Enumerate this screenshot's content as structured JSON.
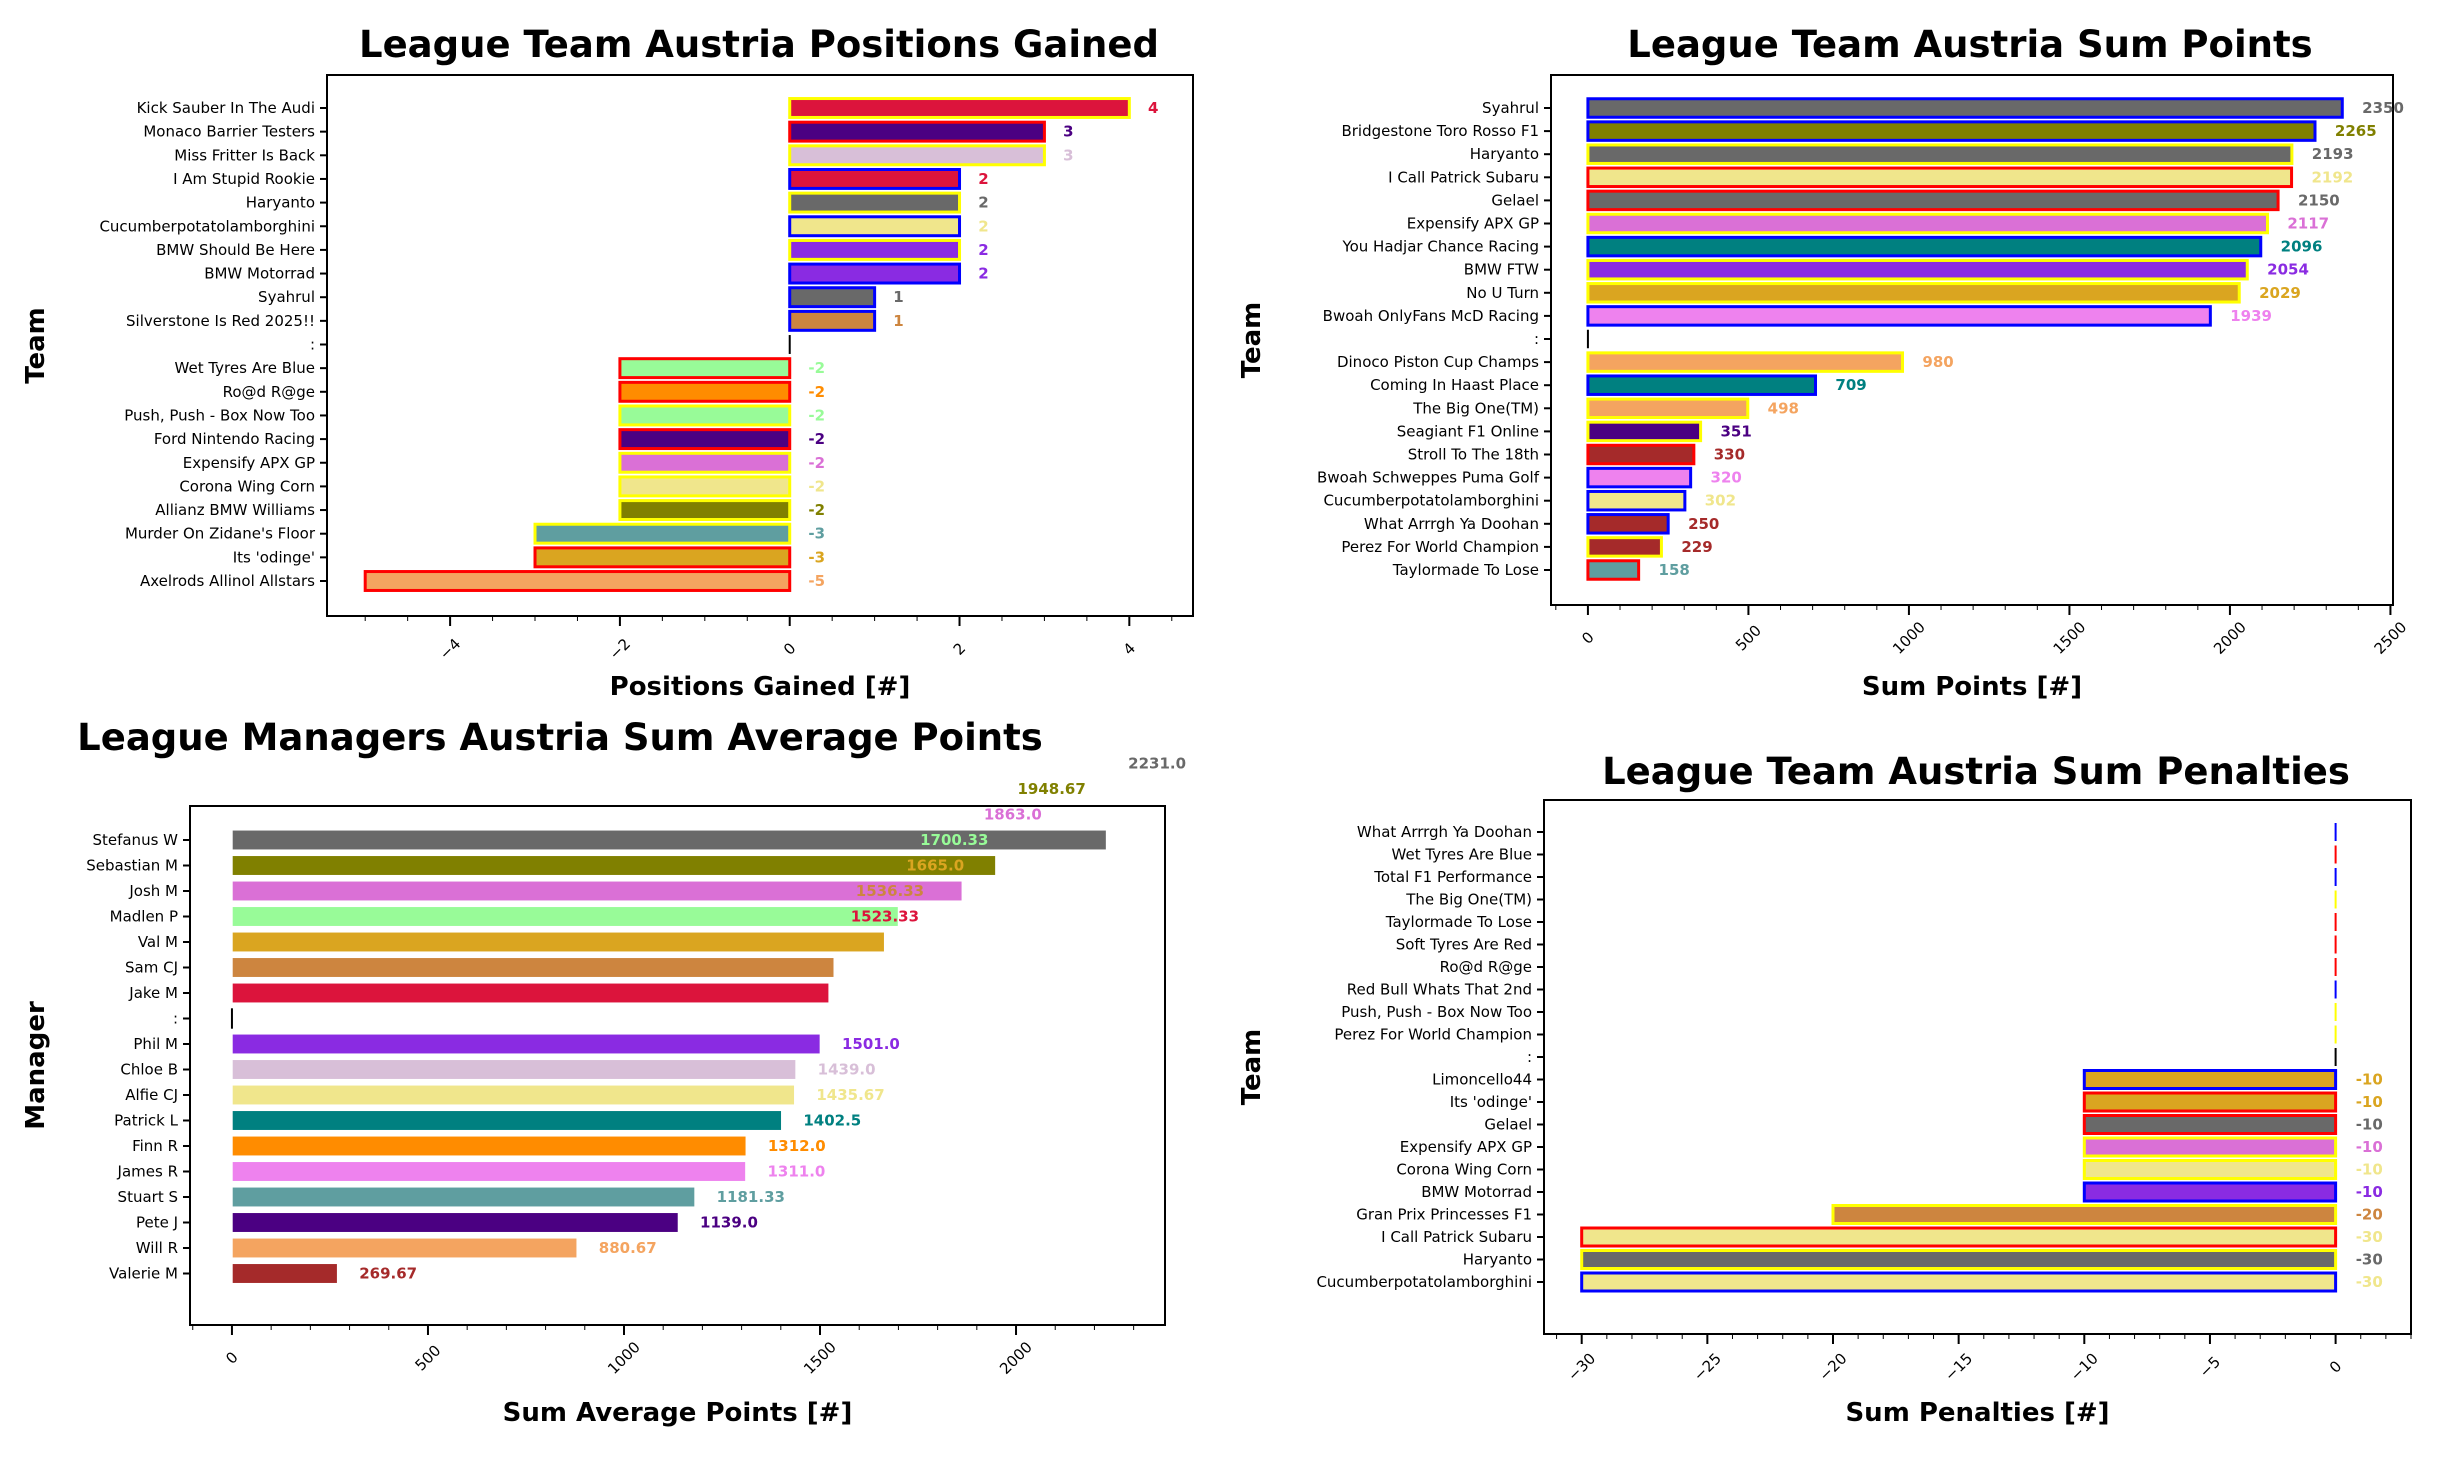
{
  "chart_data": [
    {
      "type": "bar",
      "orientation": "horizontal",
      "title": "League Team Austria Positions Gained",
      "xlabel": "Positions Gained [#]",
      "ylabel": "Team",
      "xlim": [
        -5.45,
        4.75
      ],
      "xticks": [
        -4,
        -2,
        0,
        2,
        4
      ],
      "grid": false,
      "categories": [
        "Kick Sauber In The Audi",
        "Monaco Barrier Testers",
        "Miss Fritter Is Back",
        "I Am Stupid Rookie",
        "Haryanto",
        "Cucumberpotatolamborghini",
        "BMW Should Be Here",
        "BMW Motorrad",
        "Syahrul",
        "Silverstone Is Red 2025!!",
        ":",
        "Wet Tyres Are Blue",
        "Ro@d R@ge",
        "Push, Push - Box Now Too",
        "Ford Nintendo Racing",
        "Expensify APX GP",
        "Corona Wing Corn",
        "Allianz BMW Williams",
        "Murder On Zidane's Floor",
        "Its 'odinge'",
        "Axelrods Allinol Allstars"
      ],
      "values": [
        4,
        3,
        3,
        2,
        2,
        2,
        2,
        2,
        1,
        1,
        0,
        -2,
        -2,
        -2,
        -2,
        -2,
        -2,
        -2,
        -3,
        -3,
        -5
      ],
      "value_labels": [
        "4",
        "3",
        "3",
        "2",
        "2",
        "2",
        "2",
        "2",
        "1",
        "1",
        "",
        "-2",
        "-2",
        "-2",
        "-2",
        "-2",
        "-2",
        "-2",
        "-3",
        "-3",
        "-5"
      ],
      "colors": [
        "#dc143c",
        "#4b0082",
        "#d8bfd8",
        "#dc143c",
        "#696969",
        "#f0e68c",
        "#8a2be2",
        "#8a2be2",
        "#696969",
        "#cd853f",
        "#000000",
        "#98fb98",
        "#ff8c00",
        "#98fb98",
        "#4b0082",
        "#da70d6",
        "#f0e68c",
        "#808000",
        "#5f9ea0",
        "#daa520",
        "#f4a460"
      ],
      "edgecolors": [
        "#ffff00",
        "#ff0000",
        "#ffff00",
        "#0000ff",
        "#ffff00",
        "#0000ff",
        "#ffff00",
        "#0000ff",
        "#0000ff",
        "#0000ff",
        "#000000",
        "#ff0000",
        "#ff0000",
        "#ffff00",
        "#ff0000",
        "#ffff00",
        "#ffff00",
        "#ffff00",
        "#ffff00",
        "#ff0000",
        "#ff0000"
      ]
    },
    {
      "type": "bar",
      "orientation": "horizontal",
      "title": "League Team Austria Sum Points",
      "xlabel": "Sum Points [#]",
      "ylabel": "Team",
      "xlim": [
        -115,
        2508
      ],
      "xticks": [
        0,
        500,
        1000,
        1500,
        2000,
        2500
      ],
      "grid": false,
      "categories": [
        "Syahrul",
        "Bridgestone Toro Rosso F1",
        "Haryanto",
        "I Call Patrick Subaru",
        "Gelael",
        "Expensify APX GP",
        "You Hadjar Chance Racing",
        "BMW FTW",
        "No U Turn",
        "Bwoah OnlyFans McD Racing",
        ":",
        "Dinoco Piston Cup Champs",
        "Coming In Haast Place",
        "The Big One(TM)",
        "Seagiant F1 Online",
        "Stroll To The 18th",
        "Bwoah Schweppes Puma Golf",
        "Cucumberpotatolamborghini",
        "What Arrrgh Ya Doohan",
        "Perez For World Champion",
        "Taylormade To Lose"
      ],
      "values": [
        2350,
        2265,
        2193,
        2192,
        2150,
        2117,
        2096,
        2054,
        2029,
        1939,
        0,
        980,
        709,
        498,
        351,
        330,
        320,
        302,
        250,
        229,
        158
      ],
      "value_labels": [
        "2350",
        "2265",
        "2193",
        "2192",
        "2150",
        "2117",
        "2096",
        "2054",
        "2029",
        "1939",
        "",
        "980",
        "709",
        "498",
        "351",
        "330",
        "320",
        "302",
        "250",
        "229",
        "158"
      ],
      "colors": [
        "#696969",
        "#808000",
        "#696969",
        "#f0e68c",
        "#696969",
        "#da70d6",
        "#008080",
        "#8a2be2",
        "#daa520",
        "#ee82ee",
        "#000000",
        "#f4a460",
        "#008080",
        "#f4a460",
        "#4b0082",
        "#a52a2a",
        "#ee82ee",
        "#f0e68c",
        "#a52a2a",
        "#a52a2a",
        "#5f9ea0"
      ],
      "edgecolors": [
        "#0000ff",
        "#0000ff",
        "#ffff00",
        "#ff0000",
        "#ff0000",
        "#ffff00",
        "#0000ff",
        "#ffff00",
        "#ffff00",
        "#0000ff",
        "#000000",
        "#ffff00",
        "#0000ff",
        "#ffff00",
        "#ffff00",
        "#ff0000",
        "#0000ff",
        "#0000ff",
        "#0000ff",
        "#ffff00",
        "#ff0000"
      ]
    },
    {
      "type": "bar",
      "orientation": "horizontal",
      "title": "League Managers Austria Sum Average Points",
      "xlabel": "Sum Average Points [#]",
      "ylabel": "Manager",
      "xlim": [
        -107,
        2380
      ],
      "xticks": [
        0,
        500,
        1000,
        1500,
        2000
      ],
      "grid": false,
      "categories": [
        "Stefanus W",
        "Sebastian M",
        "Josh M",
        "Madlen P",
        "Val M",
        "Sam CJ",
        "Jake M",
        ":",
        "Phil M",
        "Chloe B",
        "Alfie CJ",
        "Patrick L",
        "Finn R",
        "James R",
        "Stuart S",
        "Pete J",
        "Will R",
        "Valerie M"
      ],
      "values": [
        2231.0,
        1948.67,
        1863.0,
        1700.33,
        1665.0,
        1536.33,
        1523.33,
        0,
        1501.0,
        1439.0,
        1435.67,
        1402.5,
        1312.0,
        1311.0,
        1181.33,
        1139.0,
        880.67,
        269.67
      ],
      "value_labels": [
        "2231.0",
        "1948.67",
        "1863.0",
        "1700.33",
        "1665.0",
        "1536.33",
        "1523.33",
        "",
        "1501.0",
        "1439.0",
        "1435.67",
        "1402.5",
        "1312.0",
        "1311.0",
        "1181.33",
        "1139.0",
        "880.67",
        "269.67"
      ],
      "colors": [
        "#696969",
        "#808000",
        "#da70d6",
        "#98fb98",
        "#daa520",
        "#cd853f",
        "#dc143c",
        "#000000",
        "#8a2be2",
        "#d8bfd8",
        "#f0e68c",
        "#008080",
        "#ff8c00",
        "#ee82ee",
        "#5f9ea0",
        "#4b0082",
        "#f4a460",
        "#a52a2a"
      ],
      "edgecolors": [
        "#ffffff",
        "#ffffff",
        "#ffffff",
        "#ffffff",
        "#ffffff",
        "#ffffff",
        "#ffffff",
        "#000000",
        "#ffffff",
        "#ffffff",
        "#ffffff",
        "#ffffff",
        "#ffffff",
        "#ffffff",
        "#ffffff",
        "#ffffff",
        "#ffffff",
        "#ffffff"
      ]
    },
    {
      "type": "bar",
      "orientation": "horizontal",
      "title": "League Team Austria Sum Penalties",
      "xlabel": "Sum Penalties [#]",
      "ylabel": "Team",
      "xlim": [
        -31.5,
        3.0
      ],
      "xticks": [
        -30,
        -25,
        -20,
        -15,
        -10,
        -5,
        0
      ],
      "grid": false,
      "categories": [
        "What Arrrgh Ya Doohan",
        "Wet Tyres Are Blue",
        "Total F1 Performance",
        "The Big One(TM)",
        "Taylormade To Lose",
        "Soft Tyres Are Red",
        "Ro@d R@ge",
        "Red Bull Whats That 2nd",
        "Push, Push - Box Now Too",
        "Perez For World Champion",
        ":",
        "Limoncello44",
        "Its 'odinge'",
        "Gelael",
        "Expensify APX GP",
        "Corona Wing Corn",
        "BMW Motorrad",
        "Gran Prix Princesses F1",
        "I Call Patrick Subaru",
        "Haryanto",
        "Cucumberpotatolamborghini"
      ],
      "values": [
        0,
        0,
        0,
        0,
        0,
        0,
        0,
        0,
        0,
        0,
        0,
        -10,
        -10,
        -10,
        -10,
        -10,
        -10,
        -20,
        -30,
        -30,
        -30
      ],
      "value_labels": [
        "",
        "",
        "",
        "",
        "",
        "",
        "",
        "",
        "",
        "",
        "",
        "-10",
        "-10",
        "-10",
        "-10",
        "-10",
        "-10",
        "-20",
        "-30",
        "-30",
        "-30"
      ],
      "colors": [
        "#000000",
        "#000000",
        "#000000",
        "#000000",
        "#000000",
        "#000000",
        "#000000",
        "#000000",
        "#000000",
        "#000000",
        "#000000",
        "#daa520",
        "#daa520",
        "#696969",
        "#da70d6",
        "#f0e68c",
        "#8a2be2",
        "#cd853f",
        "#f0e68c",
        "#696969",
        "#f0e68c"
      ],
      "edgecolors": [
        "#0000ff",
        "#ff0000",
        "#0000ff",
        "#ffff00",
        "#ff0000",
        "#ff0000",
        "#ff0000",
        "#0000ff",
        "#ffff00",
        "#ffff00",
        "#000000",
        "#0000ff",
        "#ff0000",
        "#ff0000",
        "#ffff00",
        "#ffff00",
        "#0000ff",
        "#ffff00",
        "#ff0000",
        "#ffff00",
        "#0000ff"
      ]
    }
  ]
}
